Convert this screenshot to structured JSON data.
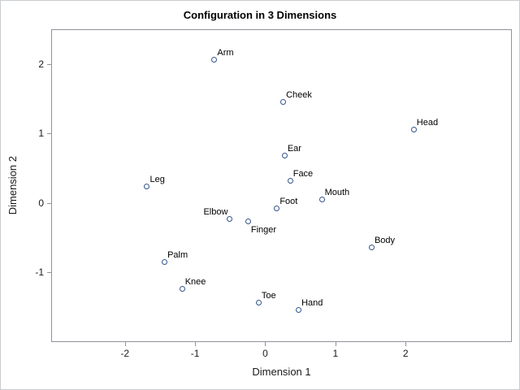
{
  "chart_data": {
    "type": "scatter",
    "title": "Configuration in 3 Dimensions",
    "xlabel": "Dimension 1",
    "ylabel": "Dimension 2",
    "xlim": [
      -3.05,
      3.49
    ],
    "ylim": [
      -1.98,
      2.5
    ],
    "xticks": [
      -2,
      -1,
      0,
      1,
      2
    ],
    "yticks": [
      -1,
      0,
      1,
      2
    ],
    "grid": false,
    "legend": "none",
    "marker_shape": "open-circle",
    "marker_color": "#34558b",
    "axis_color": "#8e939b",
    "text_color": "#1a1a1a",
    "background_color": "#ffffff",
    "outer_border_color": "#c9cdd1",
    "points": [
      {
        "label": "Arm",
        "x": -0.73,
        "y": 2.07,
        "label_pos": "ne"
      },
      {
        "label": "Cheek",
        "x": 0.25,
        "y": 1.46,
        "label_pos": "ne"
      },
      {
        "label": "Head",
        "x": 2.11,
        "y": 1.06,
        "label_pos": "ne"
      },
      {
        "label": "Ear",
        "x": 0.27,
        "y": 0.69,
        "label_pos": "ne"
      },
      {
        "label": "Face",
        "x": 0.35,
        "y": 0.32,
        "label_pos": "ne"
      },
      {
        "label": "Leg",
        "x": -1.69,
        "y": 0.24,
        "label_pos": "ne"
      },
      {
        "label": "Mouth",
        "x": 0.8,
        "y": 0.05,
        "label_pos": "ne"
      },
      {
        "label": "Foot",
        "x": 0.16,
        "y": -0.07,
        "label_pos": "ne"
      },
      {
        "label": "Elbow",
        "x": -0.51,
        "y": -0.22,
        "label_pos": "nw"
      },
      {
        "label": "Finger",
        "x": -0.25,
        "y": -0.26,
        "label_pos": "se"
      },
      {
        "label": "Body",
        "x": 1.51,
        "y": -0.64,
        "label_pos": "ne"
      },
      {
        "label": "Palm",
        "x": -1.44,
        "y": -0.85,
        "label_pos": "ne"
      },
      {
        "label": "Knee",
        "x": -1.19,
        "y": -1.23,
        "label_pos": "ne"
      },
      {
        "label": "Toe",
        "x": -0.1,
        "y": -1.43,
        "label_pos": "ne"
      },
      {
        "label": "Hand",
        "x": 0.47,
        "y": -1.54,
        "label_pos": "ne"
      }
    ]
  }
}
